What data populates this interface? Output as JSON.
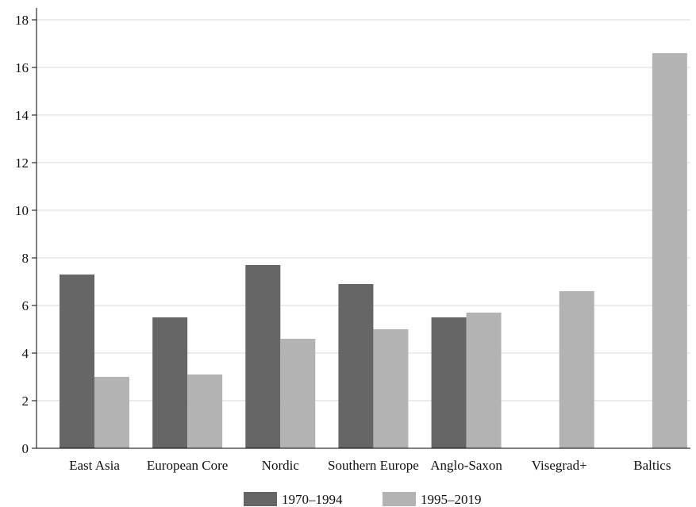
{
  "chart_data": {
    "type": "bar",
    "title": "",
    "xlabel": "",
    "ylabel": "",
    "categories": [
      "East Asia",
      "European Core",
      "Nordic",
      "Southern Europe",
      "Anglo-Saxon",
      "Visegrad+",
      "Baltics"
    ],
    "series": [
      {
        "name": "1970–1994",
        "color": "#666666",
        "values": [
          7.3,
          5.5,
          7.7,
          6.9,
          5.5,
          null,
          null
        ]
      },
      {
        "name": "1995–2019",
        "color": "#b3b3b3",
        "values": [
          3.0,
          3.1,
          4.6,
          5.0,
          5.7,
          6.6,
          16.6
        ]
      }
    ],
    "ylim": [
      0,
      18.5
    ],
    "yticks": [
      0,
      2,
      4,
      6,
      8,
      10,
      12,
      14,
      16,
      18
    ],
    "grid": true,
    "legend_position": "bottom"
  }
}
